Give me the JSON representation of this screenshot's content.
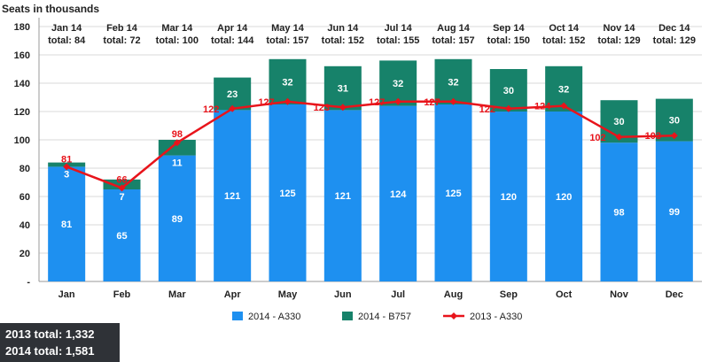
{
  "chart_data": {
    "type": "bar",
    "ylabel": "Seats in thousands",
    "ylim": [
      0,
      180
    ],
    "yticks": [
      "-",
      "20",
      "40",
      "60",
      "80",
      "100",
      "120",
      "140",
      "160",
      "180"
    ],
    "categories": [
      "Jan",
      "Feb",
      "Mar",
      "Apr",
      "May",
      "Jun",
      "Jul",
      "Aug",
      "Sep",
      "Oct",
      "Nov",
      "Dec"
    ],
    "top_labels": [
      {
        "month": "Jan 14",
        "total": "total: 84"
      },
      {
        "month": "Feb 14",
        "total": "total: 72"
      },
      {
        "month": "Mar 14",
        "total": "total: 100"
      },
      {
        "month": "Apr 14",
        "total": "total: 144"
      },
      {
        "month": "May 14",
        "total": "total: 157"
      },
      {
        "month": "Jun 14",
        "total": "total: 152"
      },
      {
        "month": "Jul 14",
        "total": "total: 155"
      },
      {
        "month": "Aug 14",
        "total": "total: 157"
      },
      {
        "month": "Sep 14",
        "total": "total: 150"
      },
      {
        "month": "Oct 14",
        "total": "total: 152"
      },
      {
        "month": "Nov 14",
        "total": "total: 129"
      },
      {
        "month": "Dec 14",
        "total": "total: 129"
      }
    ],
    "series": [
      {
        "name": "2014 - A330",
        "kind": "bar",
        "color": "#1e90f0",
        "values": [
          81,
          65,
          89,
          121,
          125,
          121,
          124,
          125,
          120,
          120,
          98,
          99
        ]
      },
      {
        "name": "2014 - B757",
        "kind": "bar",
        "color": "#17826a",
        "values": [
          3,
          7,
          11,
          23,
          32,
          31,
          32,
          32,
          30,
          32,
          30,
          30
        ]
      },
      {
        "name": "2013 - A330",
        "kind": "line",
        "color": "#e8141b",
        "values": [
          81,
          66,
          98,
          122,
          127,
          123,
          127,
          127,
          122,
          124,
          102,
          103
        ]
      }
    ],
    "grid": true,
    "legend_position": "bottom"
  },
  "totals": {
    "line1": "2013 total: 1,332",
    "line2": "2014 total: 1,581"
  }
}
